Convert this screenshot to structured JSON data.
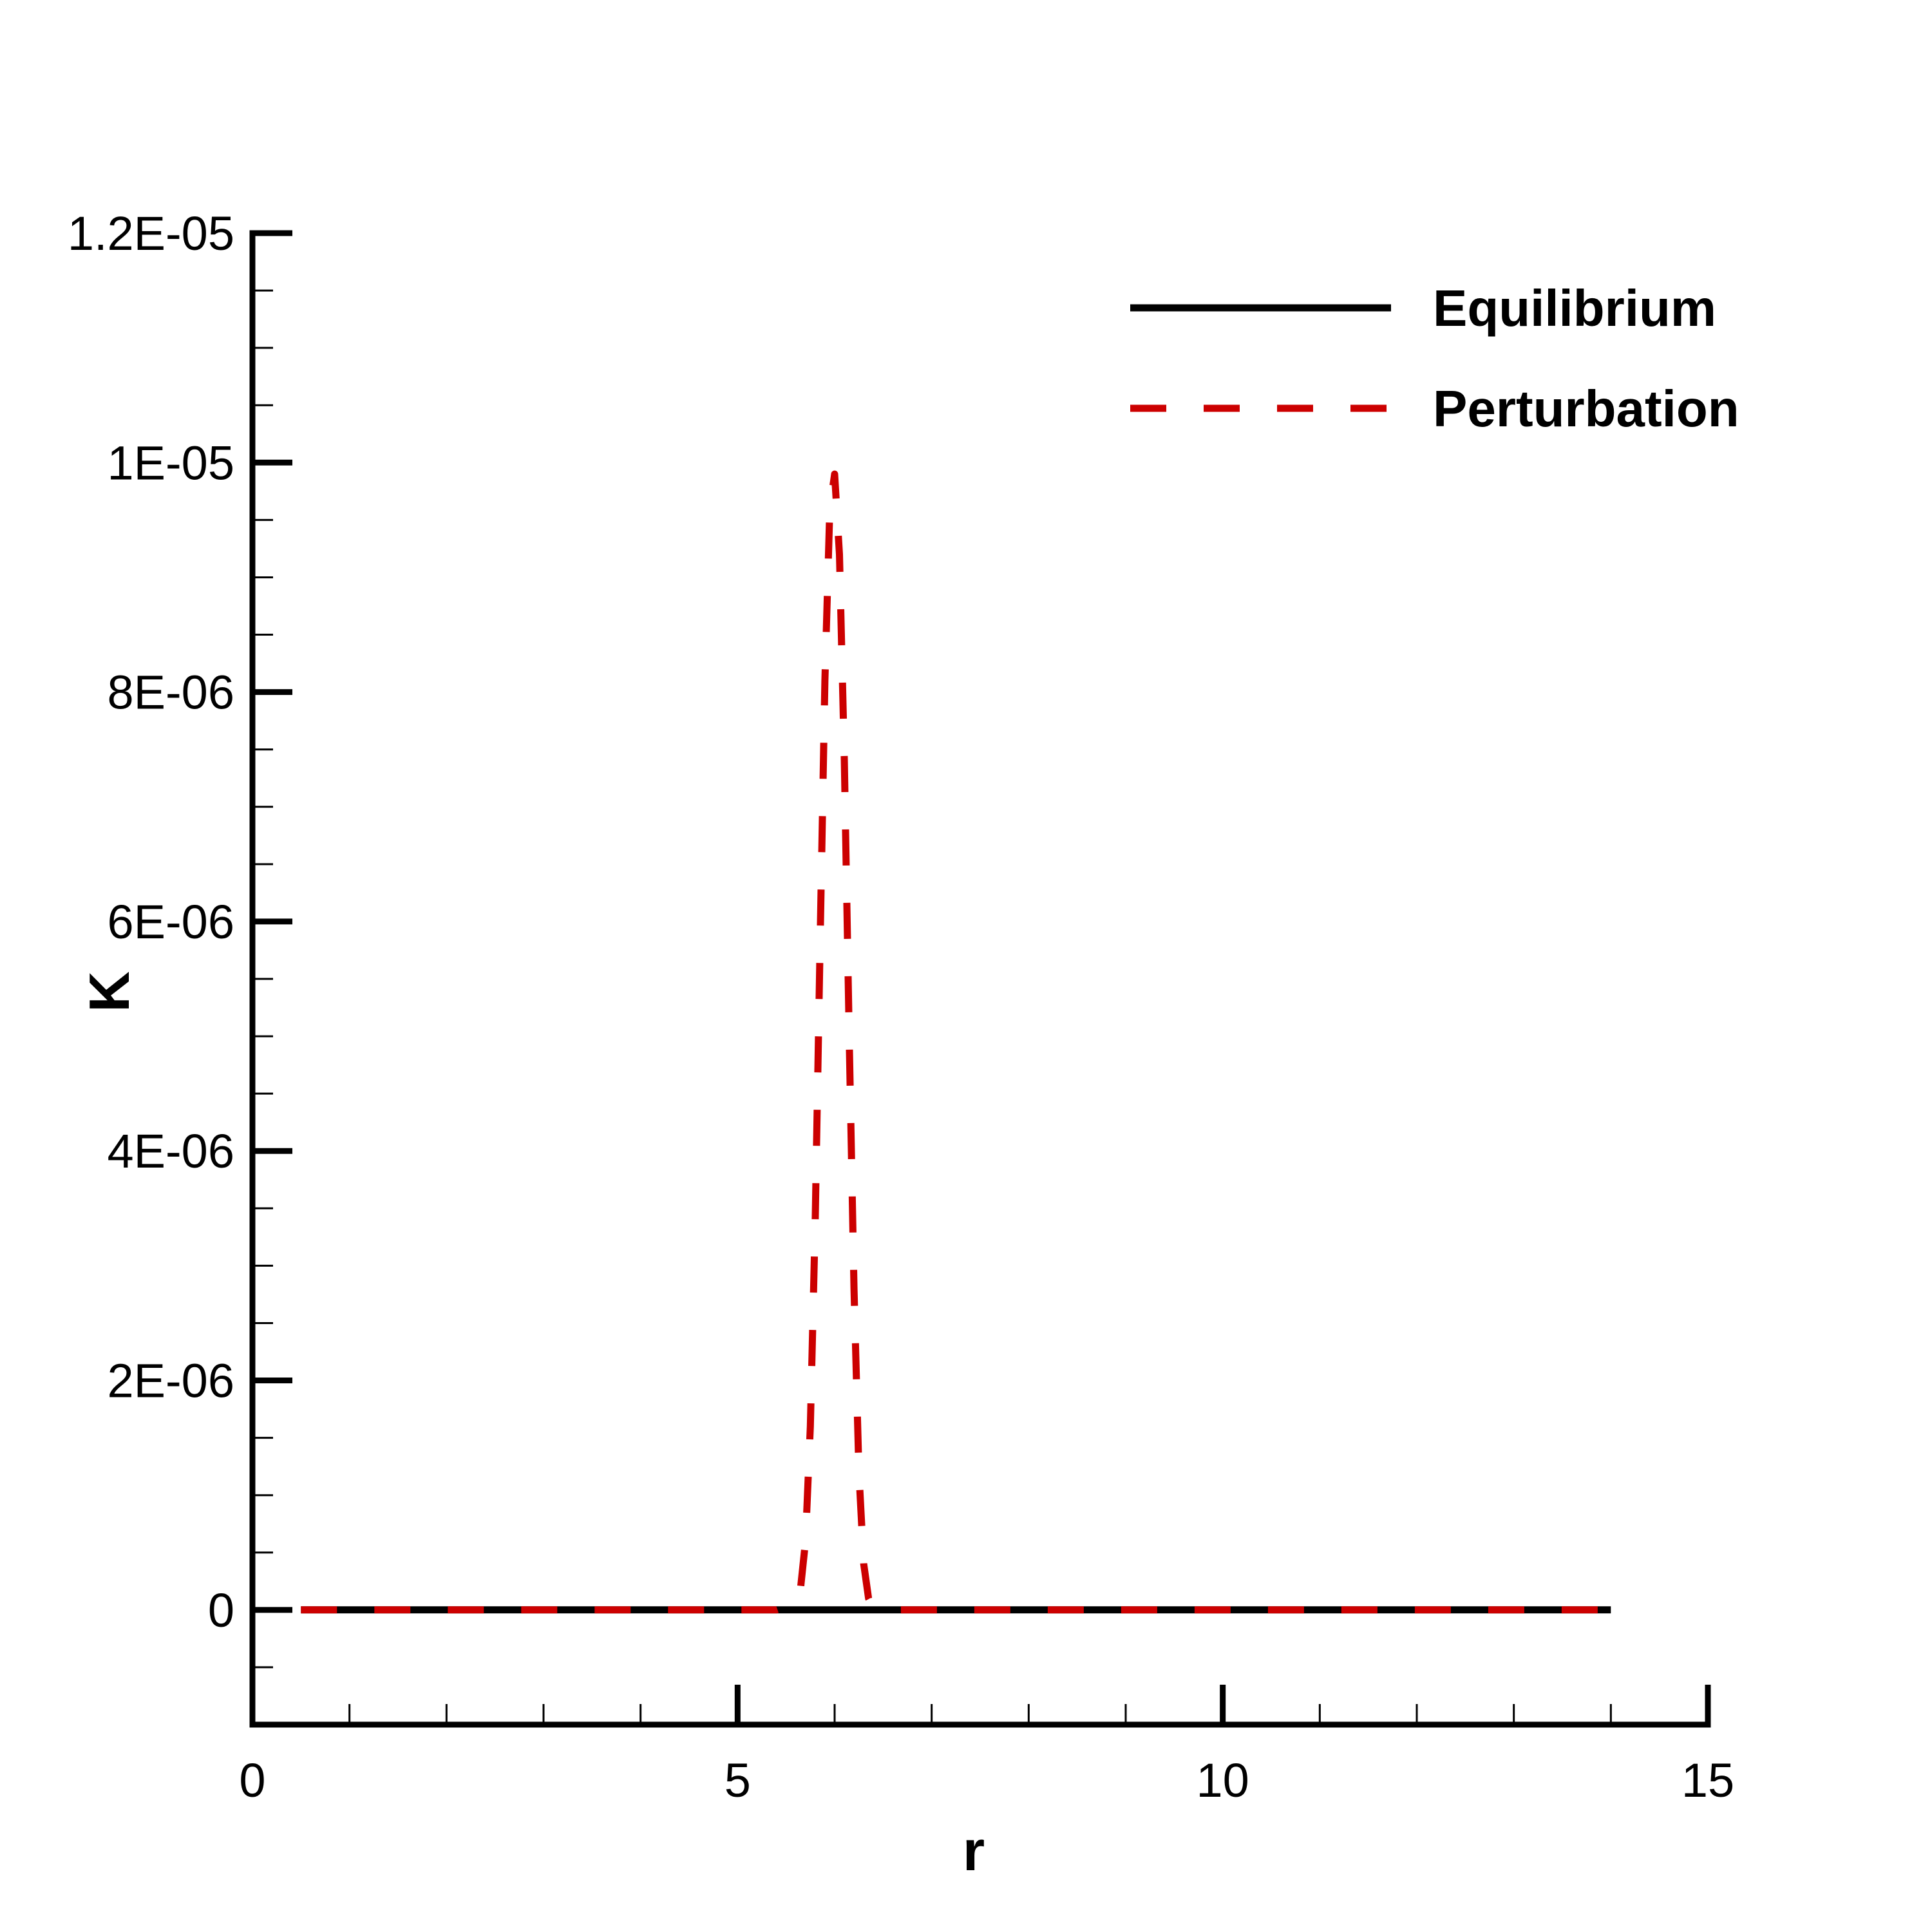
{
  "chart_data": {
    "type": "line",
    "xlabel": "r",
    "ylabel": "K",
    "xlim": [
      0,
      15
    ],
    "ylim": [
      -1e-06,
      1.2e-05
    ],
    "x_ticks": [
      {
        "value": 0,
        "label": "0"
      },
      {
        "value": 5,
        "label": "5"
      },
      {
        "value": 10,
        "label": "10"
      },
      {
        "value": 15,
        "label": "15"
      }
    ],
    "y_ticks": [
      {
        "value": 0,
        "label": "0"
      },
      {
        "value": 2e-06,
        "label": "2E-06"
      },
      {
        "value": 4e-06,
        "label": "4E-06"
      },
      {
        "value": 6e-06,
        "label": "6E-06"
      },
      {
        "value": 8e-06,
        "label": "8E-06"
      },
      {
        "value": 1e-05,
        "label": "1E-05"
      },
      {
        "value": 1.2e-05,
        "label": "1.2E-05"
      }
    ],
    "x_minor_step": 1,
    "y_minor_step": 5e-07,
    "grid": false,
    "legend_position": "top-right",
    "series": [
      {
        "name": "Equilibrium",
        "color": "#000000",
        "style": "solid",
        "x": [
          0.5,
          14.0
        ],
        "y": [
          0,
          0
        ]
      },
      {
        "name": "Perturbation",
        "color": "#cc0000",
        "style": "dashed",
        "x": [
          0.5,
          5.4,
          5.6,
          5.65,
          5.7,
          5.75,
          5.8,
          5.85,
          5.9,
          5.95,
          6.0,
          6.05,
          6.1,
          6.15,
          6.2,
          6.25,
          6.3,
          6.35,
          6.4,
          6.6,
          14.0
        ],
        "y": [
          0,
          0,
          6e-08,
          2e-07,
          6e-07,
          1.6e-06,
          3.4e-06,
          5.8e-06,
          8.1e-06,
          9.6e-06,
          9.9e-06,
          9.2e-06,
          7.4e-06,
          5e-06,
          2.8e-06,
          1.2e-06,
          4e-07,
          1e-07,
          2e-08,
          0,
          0
        ]
      }
    ]
  }
}
